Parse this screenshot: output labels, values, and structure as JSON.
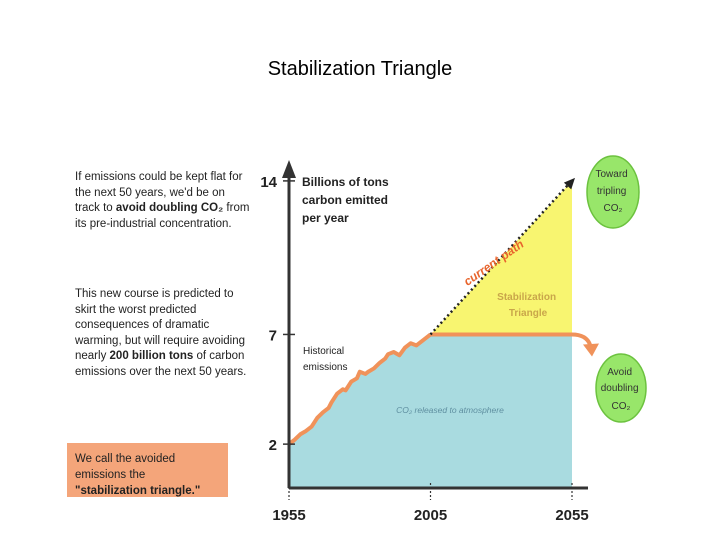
{
  "slide": {
    "title": "Stabilization Triangle"
  },
  "sidebar": {
    "paragraph1": {
      "pre": "If emissions could be kept flat for the next 50 years, we'd be on track to ",
      "bold1": "avoid doubling CO₂",
      "post": " from its pre-industrial concentration."
    },
    "paragraph2": {
      "pre": "This new course is predicted to skirt the worst predicted consequences of dramatic warming, but will require avoiding nearly ",
      "bold1": "200 billion tons",
      "post": " of carbon emissions over the next 50 years."
    },
    "note": {
      "pre": "We call the avoided emissions the ",
      "bold1": "\"stabilization triangle.\""
    }
  },
  "colors": {
    "axis": "#333333",
    "historical_fill": "#a9dbe0",
    "triangle_fill": "#f8f570",
    "emissions_line": "#f0925a",
    "note_bg": "#f4a57a",
    "bubble_fill": "#98e66a",
    "bubble_stroke": "#6cc23f",
    "current_path_text": "#e8642c",
    "triangle_label": "#c9a64a"
  },
  "chart_data": {
    "type": "area",
    "title": "Stabilization Triangle",
    "ylabel": "Billions of tons carbon emitted per year",
    "xlim": [
      1955,
      2055
    ],
    "ylim": [
      0,
      15.5
    ],
    "x_ticks": [
      {
        "value": 1955,
        "label": "1955"
      },
      {
        "value": 2005,
        "label": "2005"
      },
      {
        "value": 2055,
        "label": "2055"
      }
    ],
    "y_ticks": [
      {
        "value": 2,
        "label": "2"
      },
      {
        "value": 7,
        "label": "7"
      },
      {
        "value": 14,
        "label": "14"
      }
    ],
    "series": [
      {
        "name": "Historical emissions",
        "x": [
          1955,
          1957,
          1959,
          1961,
          1963,
          1965,
          1967,
          1969,
          1970,
          1972,
          1974,
          1975,
          1977,
          1979,
          1980,
          1982,
          1983,
          1985,
          1987,
          1989,
          1990,
          1992,
          1994,
          1996,
          1998,
          2000,
          2002,
          2005
        ],
        "values": [
          2.0,
          2.2,
          2.45,
          2.6,
          2.8,
          3.2,
          3.45,
          3.65,
          3.9,
          4.3,
          4.5,
          4.45,
          4.85,
          5.0,
          5.3,
          5.2,
          5.3,
          5.45,
          5.7,
          5.9,
          6.1,
          6.2,
          6.05,
          6.4,
          6.6,
          6.5,
          6.7,
          7.0
        ]
      },
      {
        "name": "Stabilization path (flat)",
        "x": [
          2005,
          2055
        ],
        "values": [
          7,
          7
        ]
      },
      {
        "name": "current path",
        "x": [
          2005,
          2055
        ],
        "values": [
          7,
          14
        ]
      }
    ],
    "annotations": {
      "historical_label": "Historical emissions",
      "released_label": "CO₂ released to atmosphere",
      "current_path_label": "current path",
      "triangle_label": "Stabilization Triangle",
      "tripling_bubble": "Toward tripling CO₂",
      "avoid_bubble": "Avoid doubling CO₂"
    }
  }
}
